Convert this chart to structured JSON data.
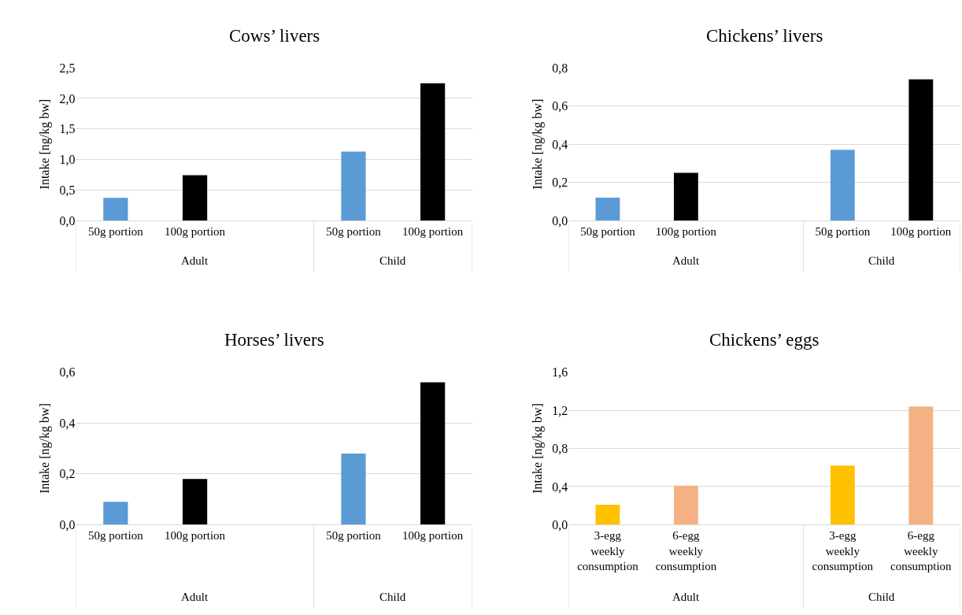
{
  "chart_data": [
    {
      "type": "bar",
      "title": "Cows’ livers",
      "ylabel": "Intake [ng/kg bw]",
      "categories": [
        "50g portion",
        "100g portion",
        null,
        "50g portion",
        "100g portion"
      ],
      "values": [
        0.37,
        0.74,
        null,
        1.13,
        2.25
      ],
      "colors": [
        "#5b9bd5",
        "#000000",
        null,
        "#5b9bd5",
        "#000000"
      ],
      "ylim": [
        0,
        2.5
      ],
      "yticks": [
        {
          "value": 0,
          "label": "0,0"
        },
        {
          "value": 0.5,
          "label": "0,5"
        },
        {
          "value": 1,
          "label": "1,0"
        },
        {
          "value": 1.5,
          "label": "1,5"
        },
        {
          "value": 2,
          "label": "2,0"
        },
        {
          "value": 2.5,
          "label": "2,5"
        }
      ],
      "grid": "y",
      "annotations": [
        "Adult",
        "Child"
      ]
    },
    {
      "type": "bar",
      "title": "Chickens’ livers",
      "ylabel": "Intake [ng/kg bw]",
      "categories": [
        "50g portion",
        "100g portion",
        null,
        "50g portion",
        "100g portion"
      ],
      "values": [
        0.12,
        0.25,
        null,
        0.37,
        0.74
      ],
      "colors": [
        "#5b9bd5",
        "#000000",
        null,
        "#5b9bd5",
        "#000000"
      ],
      "ylim": [
        0,
        0.8
      ],
      "yticks": [
        {
          "value": 0,
          "label": "0,0"
        },
        {
          "value": 0.2,
          "label": "0,2"
        },
        {
          "value": 0.4,
          "label": "0,4"
        },
        {
          "value": 0.6,
          "label": "0,6"
        },
        {
          "value": 0.8,
          "label": "0,8"
        }
      ],
      "grid": "y",
      "annotations": [
        "Adult",
        "Child"
      ]
    },
    {
      "type": "bar",
      "title": "Horses’ livers",
      "ylabel": "Intake [ng/kg bw]",
      "categories": [
        "50g portion",
        "100g portion",
        null,
        "50g portion",
        "100g portion"
      ],
      "values": [
        0.09,
        0.18,
        null,
        0.28,
        0.56
      ],
      "colors": [
        "#5b9bd5",
        "#000000",
        null,
        "#5b9bd5",
        "#000000"
      ],
      "ylim": [
        0,
        0.6
      ],
      "yticks": [
        {
          "value": 0,
          "label": "0,0"
        },
        {
          "value": 0.2,
          "label": "0,2"
        },
        {
          "value": 0.4,
          "label": "0,4"
        },
        {
          "value": 0.6,
          "label": "0,6"
        }
      ],
      "grid": "y",
      "annotations": [
        "Adult",
        "Child"
      ]
    },
    {
      "type": "bar",
      "title": "Chickens’ eggs",
      "ylabel": "Intake [ng/kg bw]",
      "categories": [
        "3-egg\nweekly\nconsumption",
        "6-egg\nweekly\nconsumption",
        null,
        "3-egg\nweekly\nconsumption",
        "6-egg\nweekly\nconsumption"
      ],
      "values": [
        0.21,
        0.41,
        null,
        0.62,
        1.24
      ],
      "colors": [
        "#ffc000",
        "#f4b183",
        null,
        "#ffc000",
        "#f4b183"
      ],
      "ylim": [
        0,
        1.6
      ],
      "yticks": [
        {
          "value": 0,
          "label": "0,0"
        },
        {
          "value": 0.4,
          "label": "0,4"
        },
        {
          "value": 0.8,
          "label": "0,8"
        },
        {
          "value": 1.2,
          "label": "1,2"
        },
        {
          "value": 1.6,
          "label": "1,6"
        }
      ],
      "grid": "y",
      "annotations": [
        "Adult",
        "Child"
      ]
    }
  ]
}
